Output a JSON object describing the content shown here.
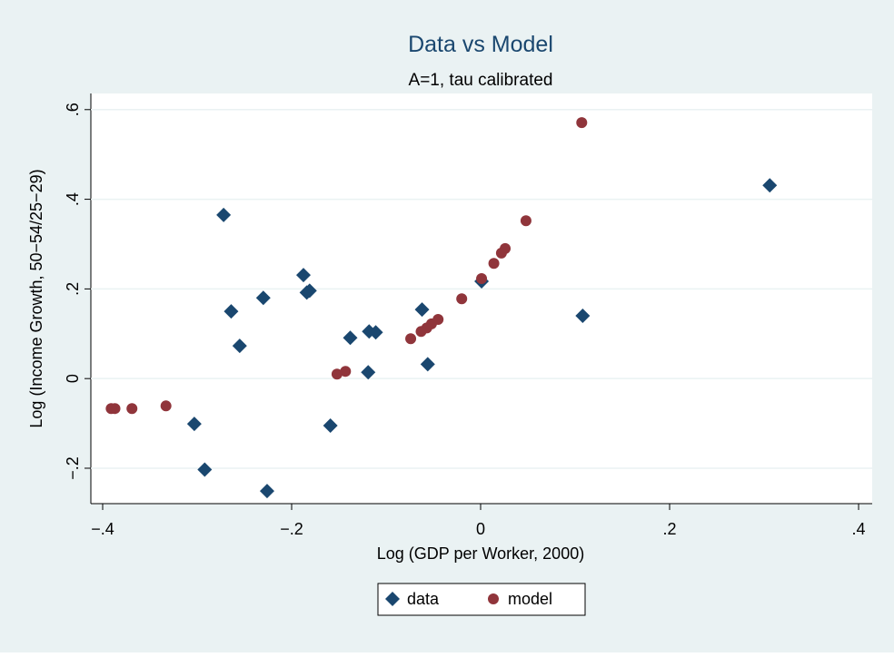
{
  "chart_data": {
    "type": "scatter",
    "title": "Data vs Model",
    "subtitle": "A=1, tau calibrated",
    "x_label": "Log (GDP per Worker, 2000)",
    "y_label": "Log (Income Growth, 50−54/25−29)",
    "xlim": [
      -0.4125,
      0.4144
    ],
    "ylim": [
      -0.279,
      0.636
    ],
    "xticks": [
      {
        "value": -0.4,
        "label": "−.4"
      },
      {
        "value": -0.2,
        "label": "−.2"
      },
      0,
      {
        "value": 0.2,
        "label": ".2"
      },
      {
        "value": 0.4,
        "label": ".4"
      }
    ],
    "yticks": [
      {
        "value": -0.2,
        "label": "−.2"
      },
      0,
      {
        "value": 0.2,
        "label": ".2"
      },
      {
        "value": 0.4,
        "label": ".4"
      },
      {
        "value": 0.6,
        "label": ".6"
      }
    ],
    "grid": true,
    "legend": "bottom",
    "series": [
      {
        "name": "data",
        "color": "#1a476f",
        "marker": "diamond",
        "x": [
          0.306,
          -0.272,
          -0.1875,
          -0.184,
          -0.181,
          -0.23,
          -0.264,
          -0.255,
          -0.303,
          -0.292,
          -0.226,
          -0.159,
          -0.138,
          -0.118,
          -0.111,
          -0.119,
          -0.062,
          -0.056,
          0.001,
          0.108
        ],
        "values": [
          0.431,
          0.365,
          0.231,
          0.192,
          0.196,
          0.18,
          0.15,
          0.073,
          -0.101,
          -0.203,
          -0.251,
          -0.105,
          0.091,
          0.105,
          0.103,
          0.014,
          0.154,
          0.032,
          0.217,
          0.14
        ]
      },
      {
        "name": "model",
        "color": "#90353b",
        "marker": "circle",
        "x": [
          0.107,
          0.048,
          0.026,
          0.022,
          0.014,
          0.001,
          -0.02,
          -0.045,
          -0.052,
          -0.057,
          -0.063,
          -0.074,
          -0.143,
          -0.152,
          -0.333,
          -0.369,
          -0.387,
          -0.391
        ],
        "values": [
          0.571,
          0.352,
          0.29,
          0.28,
          0.257,
          0.223,
          0.178,
          0.132,
          0.122,
          0.113,
          0.105,
          0.089,
          0.016,
          0.01,
          -0.061,
          -0.067,
          -0.067,
          -0.067
        ]
      }
    ]
  }
}
